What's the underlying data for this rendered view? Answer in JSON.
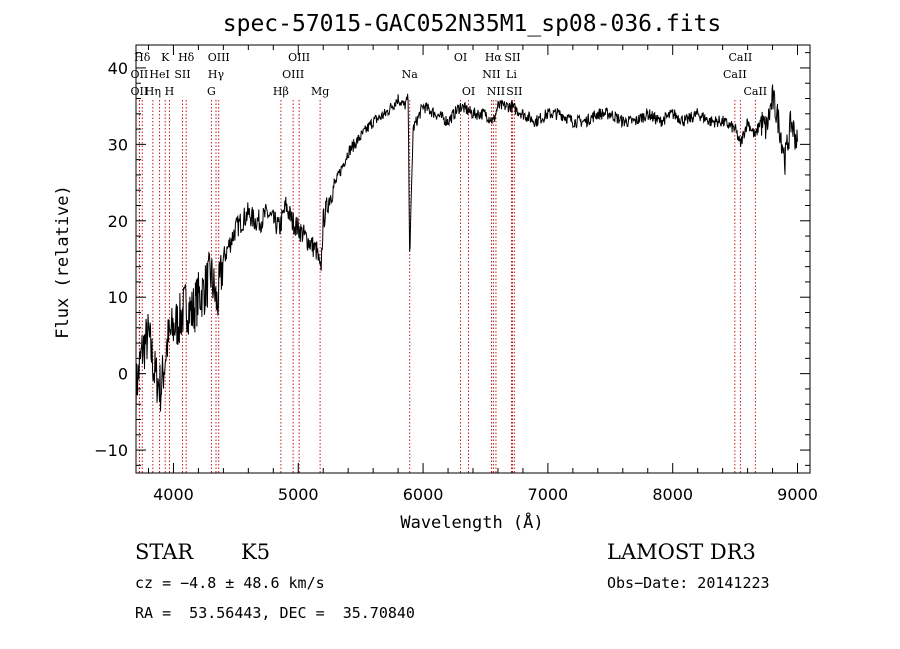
{
  "chart_data": {
    "type": "line",
    "title": "spec-57015-GAC052N35M1_sp08-036.fits",
    "xlabel": "Wavelength (Å)",
    "ylabel": "Flux (relative)",
    "xlim": [
      3700,
      9100
    ],
    "ylim": [
      -13,
      43
    ],
    "x_ticks": [
      4000,
      5000,
      6000,
      7000,
      8000,
      9000
    ],
    "y_ticks": [
      -10,
      0,
      10,
      20,
      30,
      40
    ],
    "grid": false,
    "series": [
      {
        "name": "flux",
        "color": "#000000",
        "x": [
          3700,
          3750,
          3800,
          3850,
          3900,
          3950,
          4000,
          4050,
          4100,
          4150,
          4200,
          4250,
          4300,
          4350,
          4400,
          4450,
          4500,
          4550,
          4600,
          4650,
          4700,
          4750,
          4800,
          4850,
          4900,
          4950,
          5000,
          5050,
          5100,
          5150,
          5180,
          5200,
          5250,
          5300,
          5400,
          5500,
          5600,
          5700,
          5800,
          5850,
          5880,
          5893,
          5920,
          6000,
          6100,
          6200,
          6300,
          6400,
          6500,
          6563,
          6600,
          6700,
          6800,
          6900,
          7000,
          7100,
          7200,
          7300,
          7400,
          7500,
          7600,
          7700,
          7800,
          7900,
          8000,
          8100,
          8200,
          8300,
          8400,
          8500,
          8542,
          8600,
          8662,
          8700,
          8750,
          8800,
          8850,
          8900,
          8950,
          9000
        ],
        "y": [
          -2,
          3,
          5,
          0,
          -2,
          4,
          6,
          7,
          9,
          8,
          10,
          11,
          13,
          9,
          15,
          17,
          19,
          20,
          21,
          20,
          20,
          21,
          20,
          19,
          22,
          20,
          19,
          18,
          17,
          16,
          13,
          20,
          23,
          25,
          29,
          31,
          33,
          34,
          36,
          35,
          36,
          15,
          32,
          35,
          34,
          33,
          35,
          34,
          34,
          33,
          35,
          35,
          34,
          33,
          34,
          34,
          33,
          33,
          34,
          34,
          33,
          33,
          34,
          33,
          34,
          33,
          34,
          33,
          33,
          32,
          30,
          33,
          31,
          33,
          32,
          36,
          33,
          28,
          33,
          30
        ]
      }
    ],
    "line_markers": [
      {
        "label": "Hδ",
        "wavelength": 3750,
        "row": 0
      },
      {
        "label": "OII",
        "wavelength": 3727,
        "row": 1
      },
      {
        "label": "OII",
        "wavelength": 3727,
        "row": 2
      },
      {
        "label": "HeI",
        "wavelength": 3889,
        "row": 1
      },
      {
        "label": "Hη",
        "wavelength": 3835,
        "row": 2
      },
      {
        "label": "K",
        "wavelength": 3934,
        "row": 0
      },
      {
        "label": "H",
        "wavelength": 3968,
        "row": 2
      },
      {
        "label": "Hδ",
        "wavelength": 4102,
        "row": 0
      },
      {
        "label": "SII",
        "wavelength": 4072,
        "row": 1
      },
      {
        "label": "OIII",
        "wavelength": 4363,
        "row": 0
      },
      {
        "label": "Hγ",
        "wavelength": 4341,
        "row": 1
      },
      {
        "label": "G",
        "wavelength": 4304,
        "row": 2
      },
      {
        "label": "Hβ",
        "wavelength": 4861,
        "row": 2
      },
      {
        "label": "OIII",
        "wavelength": 5007,
        "row": 0
      },
      {
        "label": "OIII",
        "wavelength": 4959,
        "row": 1
      },
      {
        "label": "Mg",
        "wavelength": 5175,
        "row": 2
      },
      {
        "label": "Na",
        "wavelength": 5893,
        "row": 1
      },
      {
        "label": "OI",
        "wavelength": 6300,
        "row": 0
      },
      {
        "label": "OI",
        "wavelength": 6364,
        "row": 2
      },
      {
        "label": "Hα",
        "wavelength": 6563,
        "row": 0
      },
      {
        "label": "SII",
        "wavelength": 6716,
        "row": 0
      },
      {
        "label": "NII",
        "wavelength": 6548,
        "row": 1
      },
      {
        "label": "Li",
        "wavelength": 6708,
        "row": 1
      },
      {
        "label": "NII",
        "wavelength": 6584,
        "row": 2
      },
      {
        "label": "SII",
        "wavelength": 6731,
        "row": 2
      },
      {
        "label": "CaII",
        "wavelength": 8542,
        "row": 0
      },
      {
        "label": "CaII",
        "wavelength": 8498,
        "row": 1
      },
      {
        "label": "CaII",
        "wavelength": 8662,
        "row": 2
      }
    ]
  },
  "info": {
    "object_class": "STAR",
    "subclass": "K5",
    "survey": "LAMOST DR3",
    "redshift_text": "cz = −4.8 ± 48.6 km/s",
    "obs_date_text": "Obs−Date: 20141223",
    "coords_text": "RA =  53.56443, DEC =  35.70840"
  }
}
